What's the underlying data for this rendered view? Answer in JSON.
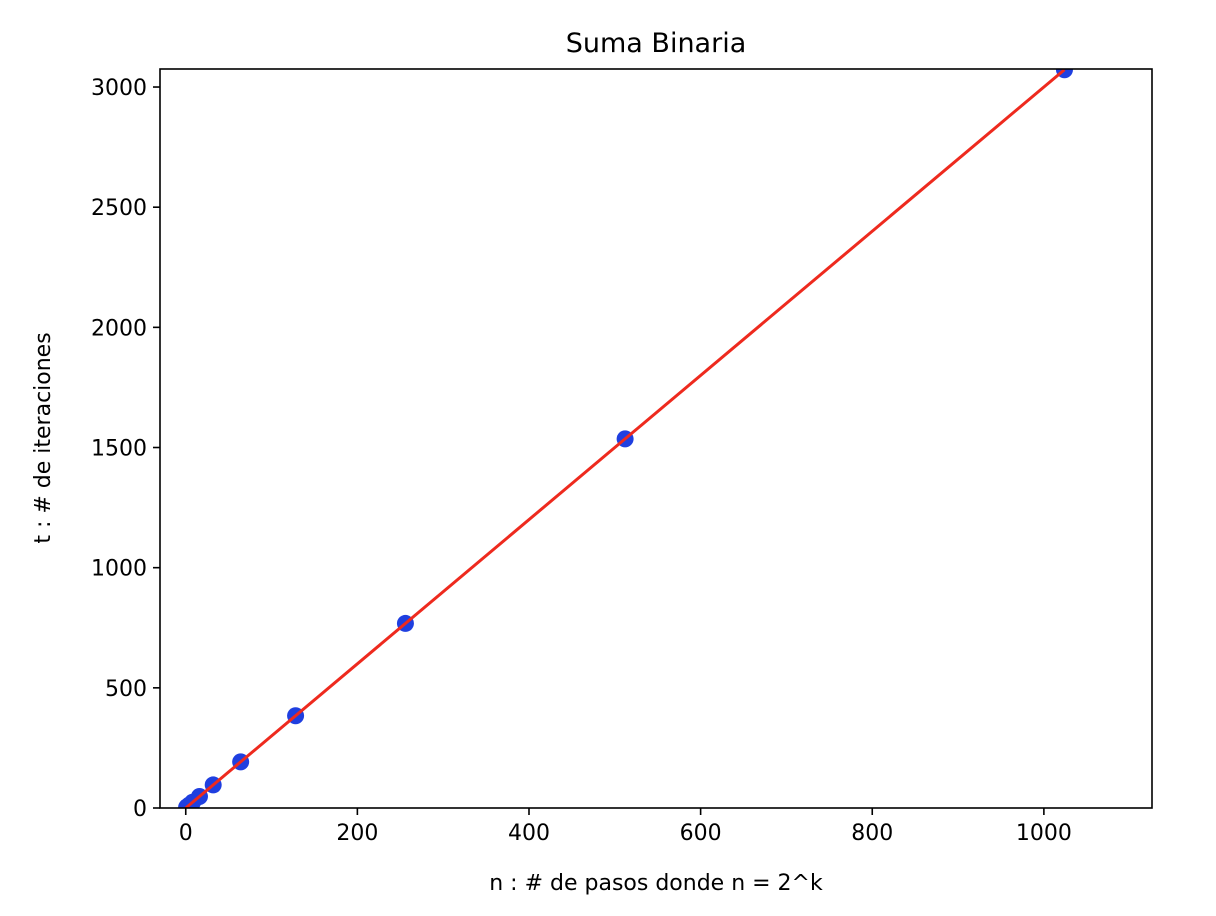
{
  "chart_data": {
    "type": "scatter",
    "title": "Suma Binaria",
    "xlabel": "n : # de pasos donde n = 2^k",
    "ylabel": "t : # de iteraciones",
    "xlim": [
      -30,
      1126
    ],
    "ylim": [
      0,
      3075
    ],
    "xticks": [
      0,
      200,
      400,
      600,
      800,
      1000
    ],
    "yticks": [
      0,
      500,
      1000,
      1500,
      2000,
      2500,
      3000
    ],
    "grid": false,
    "scatter": {
      "color": "#1f3fe0",
      "x": [
        1,
        2,
        4,
        8,
        16,
        32,
        64,
        128,
        256,
        512,
        1024
      ],
      "y": [
        3,
        6,
        12,
        24,
        48,
        96,
        192,
        384,
        768,
        1536,
        3072
      ]
    },
    "fit_line": {
      "color": "#ee2a1e",
      "x": [
        0,
        1024
      ],
      "y": [
        0,
        3072
      ]
    }
  }
}
